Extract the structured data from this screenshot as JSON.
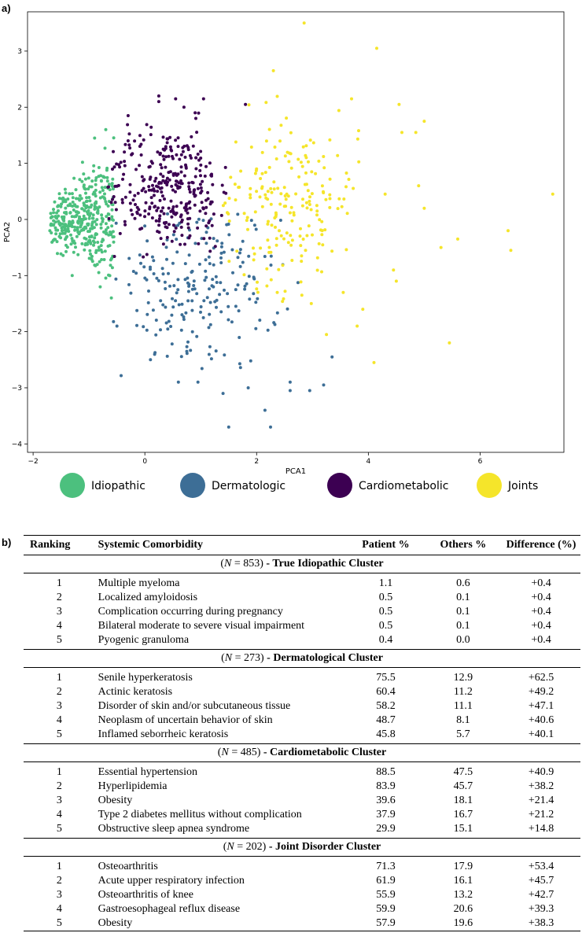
{
  "panel_a": "a)",
  "panel_b": "b)",
  "chart_data": {
    "type": "scatter",
    "title": "",
    "xlabel": "PCA1",
    "ylabel": "PCA2",
    "xlim": [
      -2.1,
      7.5
    ],
    "ylim": [
      -4.15,
      3.7
    ],
    "xticks": [
      -2,
      0,
      2,
      4,
      6
    ],
    "yticks": [
      -4,
      -3,
      -2,
      -1,
      0,
      1,
      2,
      3
    ],
    "legend_position": "bottom",
    "series": [
      {
        "name": "Idiopathic",
        "color": "#4cc07e",
        "cluster": {
          "count": 380,
          "cx": -1.05,
          "cy": 0.0,
          "sx": 0.55,
          "sy": 0.55,
          "xmin": -1.7,
          "xmax": -0.55,
          "ymin": -1.4,
          "ymax": 1.65
        },
        "points": [
          [
            -1.6,
            -0.15
          ],
          [
            -1.7,
            -0.2
          ],
          [
            -0.7,
            1.6
          ],
          [
            -0.9,
            1.45
          ],
          [
            -1.3,
            -1.0
          ],
          [
            -0.6,
            -1.4
          ],
          [
            -0.8,
            -1.2
          ]
        ]
      },
      {
        "name": "Dermatologic",
        "color": "#3d6e96",
        "cluster": {
          "count": 210,
          "cx": 0.9,
          "cy": -1.2,
          "sx": 0.75,
          "sy": 0.75,
          "xmin": -0.6,
          "xmax": 2.9,
          "ymin": -2.8,
          "ymax": 0.2
        },
        "points": [
          [
            1.5,
            -3.7
          ],
          [
            2.25,
            -3.7
          ],
          [
            2.15,
            -3.4
          ],
          [
            0.6,
            -2.9
          ],
          [
            0.95,
            -2.9
          ],
          [
            1.4,
            -3.1
          ],
          [
            1.85,
            -3.0
          ],
          [
            2.6,
            -3.05
          ],
          [
            2.95,
            -3.05
          ],
          [
            3.2,
            -2.95
          ],
          [
            3.35,
            -2.45
          ],
          [
            0.1,
            -2.5
          ],
          [
            -0.5,
            -1.9
          ],
          [
            2.6,
            -2.9
          ],
          [
            0.75,
            -2.35
          ]
        ]
      },
      {
        "name": "Cardiometabolic",
        "color": "#3c0052",
        "cluster": {
          "count": 320,
          "cx": 0.4,
          "cy": 0.55,
          "sx": 0.6,
          "sy": 0.55,
          "xmin": -0.7,
          "xmax": 1.5,
          "ymin": -0.7,
          "ymax": 2.0
        },
        "points": [
          [
            0.25,
            2.2
          ],
          [
            0.55,
            2.15
          ],
          [
            1.05,
            2.15
          ],
          [
            0.25,
            2.1
          ],
          [
            1.8,
            2.05
          ],
          [
            0.9,
            1.9
          ],
          [
            0.7,
            2.0
          ],
          [
            -0.3,
            1.85
          ]
        ]
      },
      {
        "name": "Joints",
        "color": "#f5e52a",
        "cluster": {
          "count": 200,
          "cx": 2.55,
          "cy": 0.35,
          "sx": 0.65,
          "sy": 0.8,
          "xmin": 1.4,
          "xmax": 4.0,
          "ymin": -1.5,
          "ymax": 2.2
        },
        "points": [
          [
            2.85,
            3.5
          ],
          [
            4.15,
            3.05
          ],
          [
            2.3,
            2.65
          ],
          [
            3.7,
            2.15
          ],
          [
            4.55,
            2.05
          ],
          [
            5.0,
            1.75
          ],
          [
            4.6,
            1.55
          ],
          [
            7.3,
            0.45
          ],
          [
            6.5,
            -0.2
          ],
          [
            5.6,
            -0.35
          ],
          [
            6.55,
            -0.55
          ],
          [
            5.3,
            -0.5
          ],
          [
            5.45,
            -2.2
          ],
          [
            4.1,
            -2.55
          ],
          [
            3.8,
            -1.9
          ],
          [
            4.5,
            -1.1
          ],
          [
            4.85,
            1.55
          ],
          [
            3.25,
            -2.05
          ],
          [
            4.3,
            0.45
          ],
          [
            5.0,
            0.2
          ],
          [
            4.9,
            0.6
          ],
          [
            4.45,
            -0.9
          ],
          [
            3.55,
            -1.3
          ],
          [
            3.9,
            -1.6
          ]
        ]
      }
    ],
    "legend": [
      {
        "label": "Idiopathic",
        "color": "#4cc07e"
      },
      {
        "label": "Dermatologic",
        "color": "#3d6e96"
      },
      {
        "label": "Cardiometabolic",
        "color": "#3c0052"
      },
      {
        "label": "Joints",
        "color": "#f5e52a"
      }
    ]
  },
  "table": {
    "headers": {
      "ranking": "Ranking",
      "comorbidity": "Systemic Comorbidity",
      "patient": "Patient %",
      "others": "Others %",
      "difference": "Difference (%)"
    },
    "clusters": [
      {
        "n_symbol": "N",
        "n_text": " = 853)",
        "name": " - True Idiopathic Cluster",
        "rows": [
          {
            "rank": "1",
            "name": "Multiple myeloma",
            "patient": "1.1",
            "others": "0.6",
            "diff": "+0.4"
          },
          {
            "rank": "2",
            "name": "Localized amyloidosis",
            "patient": "0.5",
            "others": "0.1",
            "diff": "+0.4"
          },
          {
            "rank": "3",
            "name": "Complication occurring during pregnancy",
            "patient": "0.5",
            "others": "0.1",
            "diff": "+0.4"
          },
          {
            "rank": "4",
            "name": "Bilateral moderate to severe visual impairment",
            "patient": "0.5",
            "others": "0.1",
            "diff": "+0.4"
          },
          {
            "rank": "5",
            "name": "Pyogenic granuloma",
            "patient": "0.4",
            "others": "0.0",
            "diff": "+0.4"
          }
        ]
      },
      {
        "n_symbol": "N",
        "n_text": " = 273)",
        "name": " - Dermatological Cluster",
        "rows": [
          {
            "rank": "1",
            "name": "Senile hyperkeratosis",
            "patient": "75.5",
            "others": "12.9",
            "diff": "+62.5"
          },
          {
            "rank": "2",
            "name": "Actinic keratosis",
            "patient": "60.4",
            "others": "11.2",
            "diff": "+49.2"
          },
          {
            "rank": "3",
            "name": "Disorder of skin and/or subcutaneous tissue",
            "patient": "58.2",
            "others": "11.1",
            "diff": "+47.1"
          },
          {
            "rank": "4",
            "name": "Neoplasm of uncertain behavior of skin",
            "patient": "48.7",
            "others": "8.1",
            "diff": "+40.6"
          },
          {
            "rank": "5",
            "name": "Inflamed seborrheic keratosis",
            "patient": "45.8",
            "others": "5.7",
            "diff": "+40.1"
          }
        ]
      },
      {
        "n_symbol": "N",
        "n_text": " = 485)",
        "name": " - Cardiometabolic Cluster",
        "rows": [
          {
            "rank": "1",
            "name": "Essential hypertension",
            "patient": "88.5",
            "others": "47.5",
            "diff": "+40.9"
          },
          {
            "rank": "2",
            "name": "Hyperlipidemia",
            "patient": "83.9",
            "others": "45.7",
            "diff": "+38.2"
          },
          {
            "rank": "3",
            "name": "Obesity",
            "patient": "39.6",
            "others": "18.1",
            "diff": "+21.4"
          },
          {
            "rank": "4",
            "name": "Type 2 diabetes mellitus without complication",
            "patient": "37.9",
            "others": "16.7",
            "diff": "+21.2"
          },
          {
            "rank": "5",
            "name": "Obstructive sleep apnea syndrome",
            "patient": "29.9",
            "others": "15.1",
            "diff": "+14.8"
          }
        ]
      },
      {
        "n_symbol": "N",
        "n_text": " = 202)",
        "name": " - Joint Disorder Cluster",
        "rows": [
          {
            "rank": "1",
            "name": "Osteoarthritis",
            "patient": "71.3",
            "others": "17.9",
            "diff": "+53.4"
          },
          {
            "rank": "2",
            "name": "Acute upper respiratory infection",
            "patient": "61.9",
            "others": "16.1",
            "diff": "+45.7"
          },
          {
            "rank": "3",
            "name": "Osteoarthritis of knee",
            "patient": "55.9",
            "others": "13.2",
            "diff": "+42.7"
          },
          {
            "rank": "4",
            "name": "Gastroesophageal reflux disease",
            "patient": "59.9",
            "others": "20.6",
            "diff": "+39.3"
          },
          {
            "rank": "5",
            "name": "Obesity",
            "patient": "57.9",
            "others": "19.6",
            "diff": "+38.3"
          }
        ]
      }
    ]
  }
}
